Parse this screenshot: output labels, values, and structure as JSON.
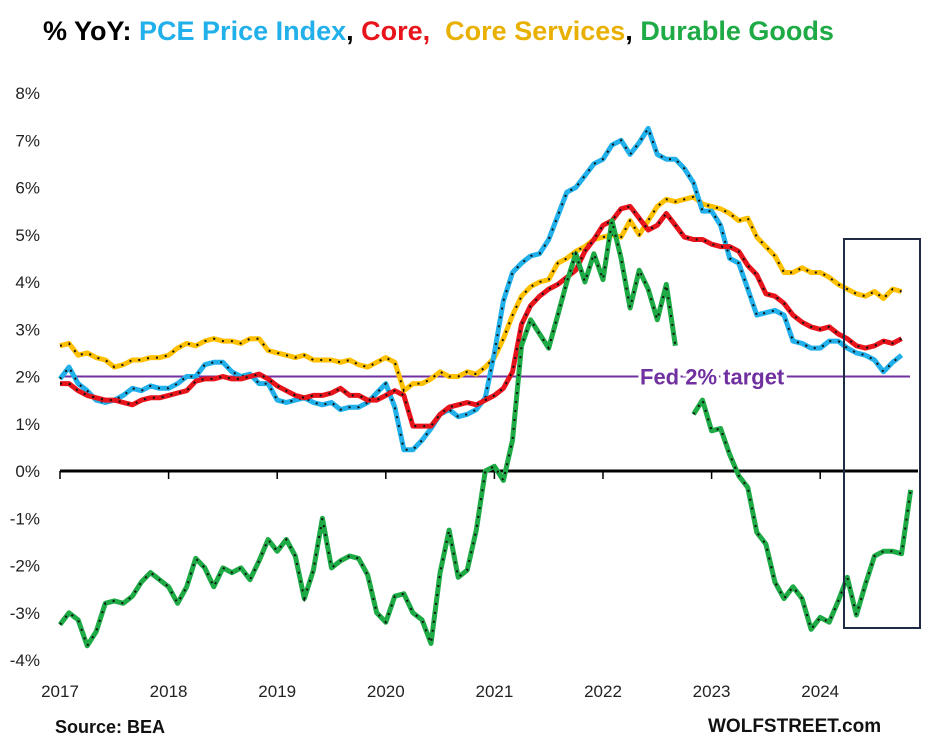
{
  "chart_data": {
    "type": "line",
    "title_prefix": "% YoY: ",
    "title_parts": [
      {
        "text": "PCE Price Index",
        "color": "#21b0ea"
      },
      {
        "text": ", ",
        "color": "#000000"
      },
      {
        "text": "Core,",
        "color": "#e8141c"
      },
      {
        "text": "  Core Services",
        "color": "#e8b000"
      },
      {
        "text": ", ",
        "color": "#000000"
      },
      {
        "text": "Durable Goods",
        "color": "#1eaa45"
      }
    ],
    "y_ticks": [
      "8%",
      "7%",
      "6%",
      "5%",
      "4%",
      "3%",
      "2%",
      "1%",
      "0%",
      "-1%",
      "-2%",
      "-3%",
      "-4%"
    ],
    "x_ticks": [
      "2017",
      "2018",
      "2019",
      "2020",
      "2021",
      "2022",
      "2023",
      "2024"
    ],
    "ylim": [
      -4,
      8
    ],
    "x_start": 2017.0,
    "x_step_months": 1,
    "reference_line": {
      "value": 2,
      "label": "Fed 2% target",
      "color": "#7030a0"
    },
    "series": [
      {
        "name": "Core Services",
        "color": "#ffc000",
        "values": [
          2.65,
          2.7,
          2.45,
          2.5,
          2.4,
          2.35,
          2.2,
          2.25,
          2.35,
          2.35,
          2.4,
          2.4,
          2.45,
          2.6,
          2.7,
          2.65,
          2.75,
          2.8,
          2.75,
          2.75,
          2.7,
          2.8,
          2.8,
          2.55,
          2.5,
          2.45,
          2.4,
          2.45,
          2.35,
          2.35,
          2.35,
          2.3,
          2.35,
          2.25,
          2.2,
          2.3,
          2.4,
          2.3,
          1.7,
          1.85,
          1.85,
          1.95,
          2.1,
          2.0,
          2.0,
          2.1,
          2.05,
          2.2,
          2.4,
          2.8,
          3.3,
          3.7,
          3.9,
          4.0,
          4.05,
          4.4,
          4.5,
          4.65,
          4.75,
          4.9,
          4.95,
          5.0,
          4.95,
          5.3,
          5.0,
          5.3,
          5.6,
          5.75,
          5.7,
          5.75,
          5.8,
          5.65,
          5.6,
          5.55,
          5.45,
          5.3,
          5.35,
          4.95,
          4.75,
          4.55,
          4.2,
          4.2,
          4.3,
          4.2,
          4.2,
          4.1,
          3.95,
          3.85,
          3.75,
          3.7,
          3.8,
          3.65,
          3.85,
          3.8
        ]
      },
      {
        "name": "PCE Price Index",
        "color": "#21b0ea",
        "values": [
          1.95,
          2.2,
          1.85,
          1.7,
          1.5,
          1.45,
          1.5,
          1.6,
          1.75,
          1.7,
          1.8,
          1.75,
          1.75,
          1.85,
          2.0,
          2.0,
          2.25,
          2.3,
          2.3,
          2.1,
          2.0,
          2.05,
          1.85,
          1.85,
          1.5,
          1.45,
          1.5,
          1.55,
          1.45,
          1.4,
          1.45,
          1.3,
          1.35,
          1.35,
          1.45,
          1.65,
          1.85,
          1.35,
          0.45,
          0.45,
          0.65,
          0.9,
          1.2,
          1.3,
          1.15,
          1.2,
          1.3,
          1.55,
          2.5,
          3.6,
          4.2,
          4.4,
          4.55,
          4.6,
          4.9,
          5.4,
          5.9,
          6.0,
          6.25,
          6.5,
          6.6,
          6.9,
          7.0,
          6.7,
          6.95,
          7.25,
          6.7,
          6.6,
          6.6,
          6.4,
          6.1,
          5.5,
          5.5,
          5.2,
          4.5,
          4.4,
          3.85,
          3.3,
          3.35,
          3.4,
          3.3,
          2.75,
          2.7,
          2.6,
          2.6,
          2.75,
          2.75,
          2.6,
          2.5,
          2.45,
          2.35,
          2.1,
          2.3,
          2.45
        ]
      },
      {
        "name": "Core",
        "color": "#e8141c",
        "values": [
          1.85,
          1.85,
          1.7,
          1.6,
          1.55,
          1.5,
          1.5,
          1.45,
          1.4,
          1.5,
          1.55,
          1.55,
          1.6,
          1.65,
          1.7,
          1.9,
          1.95,
          1.95,
          2.0,
          1.95,
          1.95,
          2.0,
          2.05,
          1.95,
          1.8,
          1.7,
          1.6,
          1.55,
          1.6,
          1.6,
          1.65,
          1.75,
          1.6,
          1.6,
          1.5,
          1.5,
          1.6,
          1.7,
          1.6,
          0.95,
          0.95,
          0.95,
          1.2,
          1.35,
          1.4,
          1.45,
          1.4,
          1.5,
          1.6,
          1.75,
          2.1,
          3.1,
          3.5,
          3.7,
          3.85,
          3.95,
          4.1,
          4.25,
          4.65,
          4.9,
          5.2,
          5.3,
          5.55,
          5.6,
          5.35,
          5.1,
          5.2,
          5.45,
          5.2,
          4.95,
          4.9,
          4.9,
          4.8,
          4.75,
          4.75,
          4.65,
          4.35,
          4.15,
          3.75,
          3.7,
          3.55,
          3.3,
          3.15,
          3.05,
          3.0,
          3.05,
          2.9,
          2.8,
          2.65,
          2.6,
          2.65,
          2.75,
          2.7,
          2.8
        ]
      },
      {
        "name": "Durable Goods",
        "color": "#1eaa45",
        "values": [
          -3.25,
          -3.0,
          -3.15,
          -3.7,
          -3.4,
          -2.8,
          -2.75,
          -2.8,
          -2.65,
          -2.35,
          -2.15,
          -2.3,
          -2.45,
          -2.8,
          -2.45,
          -1.85,
          -2.05,
          -2.45,
          -2.05,
          -2.15,
          -2.05,
          -2.3,
          -1.9,
          -1.45,
          -1.7,
          -1.45,
          -1.8,
          -2.7,
          -2.1,
          -1.0,
          -2.05,
          -1.9,
          -1.8,
          -1.85,
          -2.2,
          -3.0,
          -3.2,
          -2.65,
          -2.6,
          -3.0,
          -3.15,
          -3.65,
          -2.15,
          -1.25,
          -2.25,
          -2.1,
          -1.25,
          0.0,
          0.1,
          -0.2,
          0.65,
          2.65,
          3.2,
          2.9,
          2.6,
          3.3,
          4.0,
          4.6,
          4.0,
          4.6,
          4.05,
          5.3,
          4.5,
          3.45,
          4.25,
          3.85,
          3.2,
          3.95,
          2.65,
          1.8,
          1.2,
          1.5,
          0.85,
          0.9,
          0.35,
          -0.1,
          -0.35,
          -1.3,
          -1.55,
          -2.35,
          -2.7,
          -2.45,
          -2.7,
          -3.35,
          -3.1,
          -3.2,
          -2.75,
          -2.25,
          -3.05,
          -2.4,
          -1.8,
          -1.7,
          -1.7,
          -1.75,
          -0.4
        ],
        "gaps": [
          [
            68,
            70
          ]
        ]
      }
    ],
    "annotation": "Fed 2% target"
  },
  "footer": {
    "source": "Source: BEA",
    "brand": "WOLFSTREET.com"
  }
}
